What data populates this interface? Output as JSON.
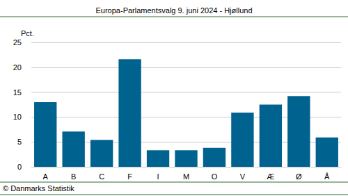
{
  "chart_data": {
    "type": "bar",
    "title": "Europa-Parlamentsvalg 9. juni 2024 - Hjøllund",
    "y_label": "Pct.",
    "source": "© Danmarks Statistik",
    "categories": [
      "A",
      "B",
      "C",
      "F",
      "I",
      "M",
      "O",
      "V",
      "Æ",
      "Ø",
      "Å"
    ],
    "values": [
      13.0,
      7.1,
      5.4,
      21.6,
      3.3,
      3.3,
      3.8,
      10.9,
      12.5,
      14.2,
      5.9
    ],
    "color": "#00628f",
    "ylim": [
      0,
      25
    ],
    "yticks": [
      0,
      5,
      10,
      15,
      20,
      25
    ],
    "grid": true
  }
}
